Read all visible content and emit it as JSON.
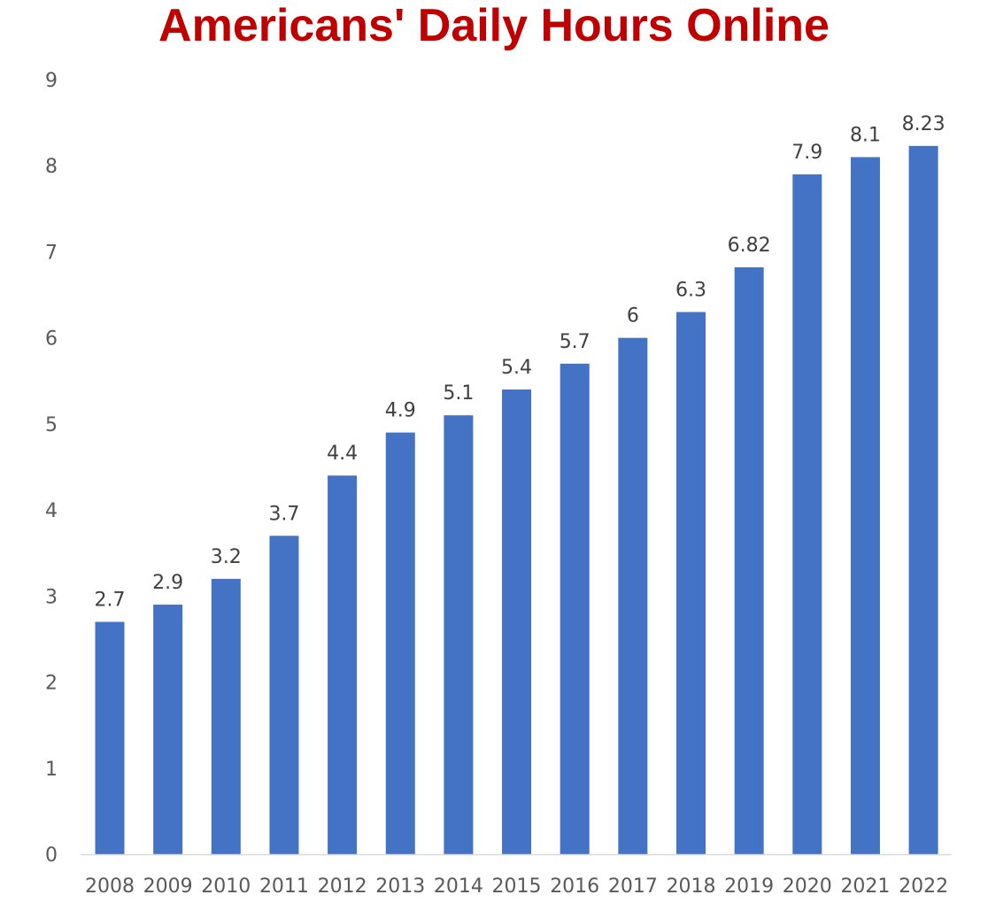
{
  "chart_data": {
    "type": "bar",
    "title": "Americans' Daily Hours Online",
    "xlabel": "",
    "ylabel": "",
    "categories": [
      "2008",
      "2009",
      "2010",
      "2011",
      "2012",
      "2013",
      "2014",
      "2015",
      "2016",
      "2017",
      "2018",
      "2019",
      "2020",
      "2021",
      "2022"
    ],
    "values": [
      2.7,
      2.9,
      3.2,
      3.7,
      4.4,
      4.9,
      5.1,
      5.4,
      5.7,
      6,
      6.3,
      6.82,
      7.9,
      8.1,
      8.23
    ],
    "value_labels": [
      "2.7",
      "2.9",
      "3.2",
      "3.7",
      "4.4",
      "4.9",
      "5.1",
      "5.4",
      "5.7",
      "6",
      "6.3",
      "6.82",
      "7.9",
      "8.1",
      "8.23"
    ],
    "ylim": [
      0,
      9
    ],
    "y_ticks": [
      0,
      1,
      2,
      3,
      4,
      5,
      6,
      7,
      8,
      9
    ],
    "grid": false,
    "legend": "none",
    "colors": {
      "bar": "#4472C4",
      "title": "#C00000",
      "tick_text": "#595959",
      "data_label_text": "#404040",
      "axis_line": "#D9D9D9"
    }
  }
}
